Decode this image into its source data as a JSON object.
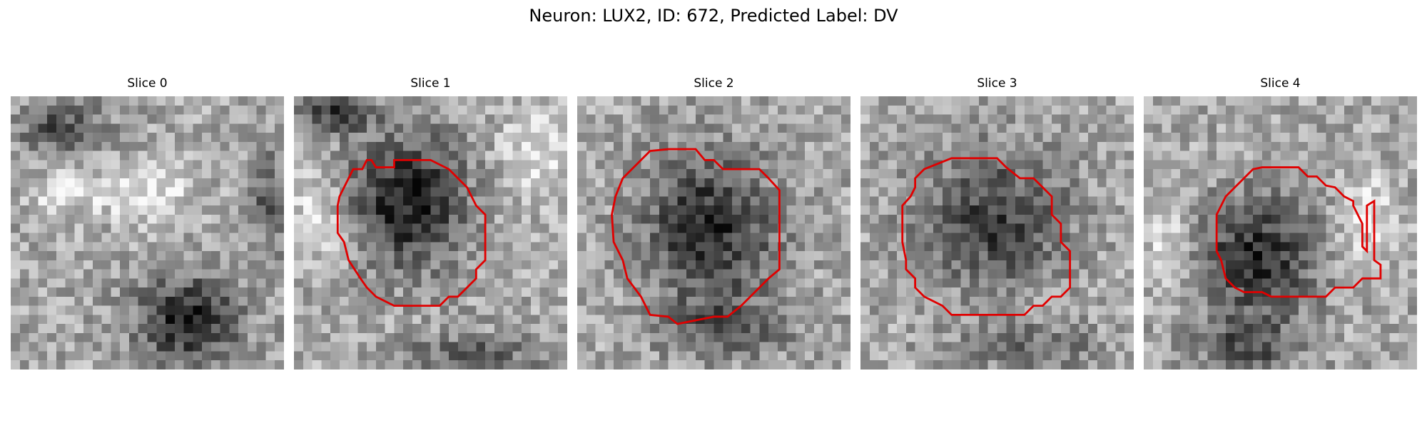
{
  "figure": {
    "title": "Neuron: LUX2, ID: 672, Predicted Label: DV",
    "contour_color": "#e00000"
  },
  "panels": [
    {
      "title": "Slice 0",
      "has_contour": false
    },
    {
      "title": "Slice 1",
      "has_contour": true
    },
    {
      "title": "Slice 2",
      "has_contour": true
    },
    {
      "title": "Slice 3",
      "has_contour": true
    },
    {
      "title": "Slice 4",
      "has_contour": true
    }
  ]
}
